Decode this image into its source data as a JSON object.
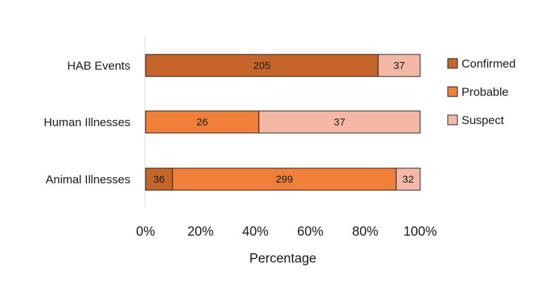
{
  "chart_data": {
    "type": "bar",
    "orientation": "horizontal",
    "stacked": "percent",
    "categories": [
      "HAB Events",
      "Human Illnesses",
      "Animal Illnesses"
    ],
    "series": [
      {
        "name": "Confirmed",
        "values": [
          205,
          0,
          36
        ],
        "color": "#C5652A"
      },
      {
        "name": "Probable",
        "values": [
          0,
          26,
          299
        ],
        "color": "#EF7F39"
      },
      {
        "name": "Suspect",
        "values": [
          37,
          37,
          32
        ],
        "color": "#F4B9A6"
      }
    ],
    "xlabel": "Percentage",
    "ylabel": "",
    "xlim": [
      0,
      100
    ],
    "xticks": [
      "0%",
      "20%",
      "40%",
      "60%",
      "80%",
      "100%"
    ],
    "legend": "right",
    "grid": false
  }
}
